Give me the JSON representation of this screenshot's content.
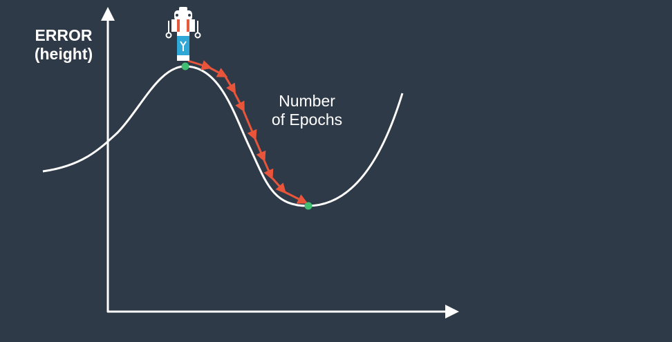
{
  "labels": {
    "y_axis_line1": "ERROR",
    "y_axis_line2": "(height)",
    "x_axis_line1": "Number",
    "x_axis_line2": "of Epochs"
  },
  "colors": {
    "background": "#2f3a48",
    "curve": "#ffffff",
    "path_arrows": "#e8553b",
    "markers": "#3fbf6f",
    "robot_accent": "#e55a3c",
    "robot_body": "#2fa8d8"
  },
  "icons": [
    "robot-icon"
  ]
}
